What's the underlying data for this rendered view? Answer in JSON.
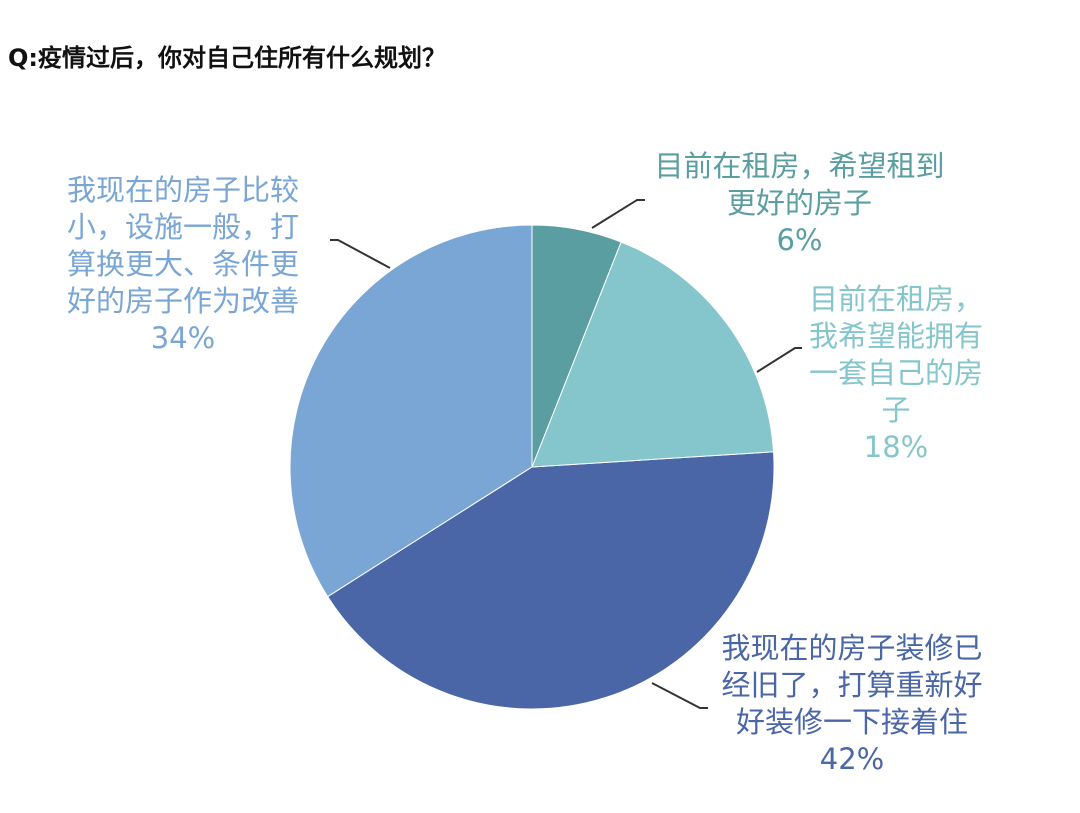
{
  "chart_data": {
    "type": "pie",
    "title": "Q:疫情过后，你对自己住所有什么规划？",
    "categories": [
      "目前在租房，希望租到更好的房子",
      "目前在租房，我希望能拥有一套自己的房子",
      "我现在的房子装修已经旧了，打算重新好好装修一下接着住",
      "我现在的房子比较小，设施一般，打算换更大、条件更好的房子作为改善"
    ],
    "values": [
      6,
      18,
      42,
      34
    ],
    "value_labels": [
      "6%",
      "18%",
      "42%",
      "34%"
    ],
    "colors": [
      "#5b9ea1",
      "#85c6cc",
      "#4a66a6",
      "#7aa6d6"
    ]
  }
}
